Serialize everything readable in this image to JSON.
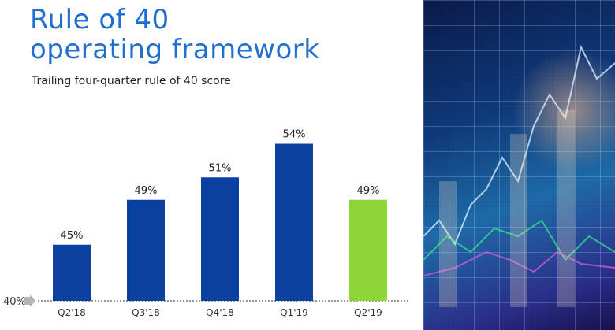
{
  "title_line1": "Rule of 40",
  "title_line2": "operating framework",
  "subtitle": "Trailing four-quarter rule of 40 score",
  "colors": {
    "title": "#1f6fd1",
    "bar": "#0b3fa0",
    "highlight": "#8cd63a",
    "axis": "#777777"
  },
  "background_image": "financial-ticker-chart-image",
  "chart_data": {
    "type": "bar",
    "categories": [
      "Q2'18",
      "Q3'18",
      "Q4'18",
      "Q1'19",
      "Q2'19"
    ],
    "values": [
      45,
      49,
      51,
      54,
      49
    ],
    "value_labels": [
      "45%",
      "49%",
      "51%",
      "54%",
      "49%"
    ],
    "highlight_index": 4,
    "baseline": 40,
    "baseline_label": "40%",
    "ylim": [
      40,
      55
    ],
    "grid": false
  }
}
